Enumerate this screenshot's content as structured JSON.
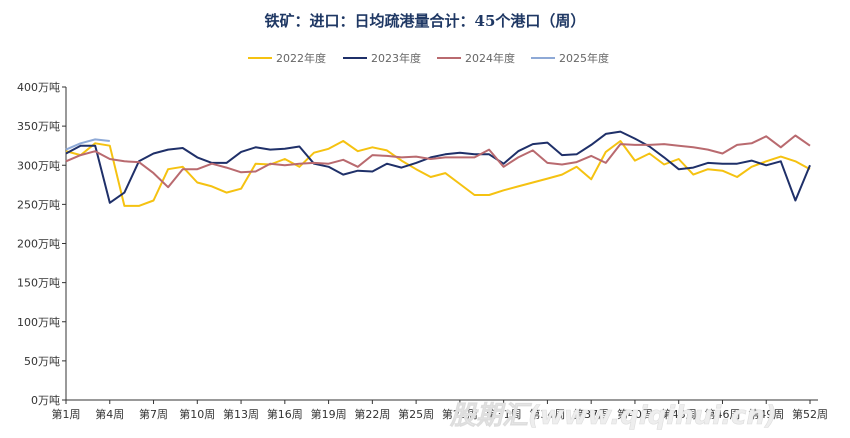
{
  "chart_data": {
    "type": "line",
    "title": "铁矿：进口：日均疏港量合计：45个港口（周）",
    "xlabel": "",
    "ylabel": "",
    "ylim": [
      0,
      400
    ],
    "y_ticks": [
      "0万吨",
      "50万吨",
      "100万吨",
      "150万吨",
      "200万吨",
      "250万吨",
      "300万吨",
      "350万吨",
      "400万吨"
    ],
    "y_tick_values": [
      0,
      50,
      100,
      150,
      200,
      250,
      300,
      350,
      400
    ],
    "x_labels": [
      "第1周",
      "第4周",
      "第7周",
      "第10周",
      "第13周",
      "第16周",
      "第19周",
      "第22周",
      "第25周",
      "第28周",
      "第31周",
      "第34周",
      "第37周",
      "第40周",
      "第43周",
      "第46周",
      "第49周",
      "第52周"
    ],
    "x_label_weeks": [
      1,
      4,
      7,
      10,
      13,
      16,
      19,
      22,
      25,
      28,
      31,
      34,
      37,
      40,
      43,
      46,
      49,
      52
    ],
    "grid": false,
    "legend_position": "top",
    "series": [
      {
        "name": "2022年度",
        "color": "#f5c211",
        "values": [
          318,
          313,
          328,
          325,
          248,
          248,
          255,
          295,
          298,
          278,
          273,
          265,
          270,
          302,
          301,
          308,
          298,
          316,
          321,
          331,
          318,
          323,
          319,
          306,
          295,
          285,
          290,
          276,
          262,
          262,
          268,
          273,
          278,
          283,
          288,
          298,
          282,
          317,
          331,
          306,
          315,
          301,
          308,
          288,
          295,
          293,
          285,
          298,
          305,
          311,
          305,
          295
        ]
      },
      {
        "name": "2023年度",
        "color": "#1f3069",
        "values": [
          315,
          325,
          325,
          252,
          265,
          305,
          315,
          320,
          322,
          310,
          303,
          303,
          317,
          323,
          320,
          321,
          324,
          302,
          298,
          288,
          293,
          292,
          302,
          297,
          303,
          310,
          314,
          316,
          314,
          314,
          302,
          318,
          327,
          329,
          313,
          314,
          326,
          340,
          343,
          334,
          324,
          310,
          295,
          297,
          303,
          302,
          302,
          306,
          300,
          305,
          255,
          300
        ]
      },
      {
        "name": "2024年度",
        "color": "#b96a6f",
        "values": [
          305,
          313,
          318,
          308,
          305,
          304,
          290,
          272,
          295,
          295,
          302,
          297,
          291,
          292,
          302,
          300,
          302,
          303,
          302,
          307,
          298,
          313,
          312,
          310,
          311,
          308,
          310,
          310,
          310,
          320,
          298,
          310,
          319,
          303,
          301,
          304,
          312,
          303,
          327,
          326,
          326,
          327,
          325,
          323,
          320,
          315,
          326,
          328,
          337,
          323,
          338,
          325
        ]
      },
      {
        "name": "2025年度",
        "color": "#8ea9d6",
        "values": [
          320,
          328,
          333,
          331
        ]
      }
    ]
  },
  "watermark": "股期汇(www.qiqihui.cn)"
}
